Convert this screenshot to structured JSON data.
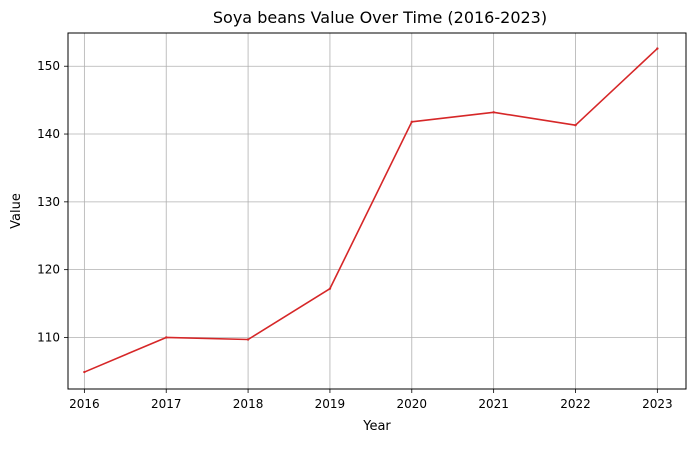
{
  "chart_data": {
    "type": "line",
    "title": "Soya beans Value Over Time (2016-2023)",
    "xlabel": "Year",
    "ylabel": "Value",
    "x": [
      "2016",
      "2017",
      "2018",
      "2019",
      "2020",
      "2021",
      "2022",
      "2023"
    ],
    "series": [
      {
        "values": [
          104.9,
          110.0,
          109.7,
          117.2,
          141.8,
          143.2,
          141.3,
          152.6
        ],
        "color": "#d62728"
      }
    ],
    "xlim": [
      2015.8,
      2023.35
    ],
    "ylim": [
      102.4,
      154.9
    ],
    "yticks": [
      110,
      120,
      130,
      140,
      150
    ],
    "grid": true,
    "legend": "none"
  }
}
